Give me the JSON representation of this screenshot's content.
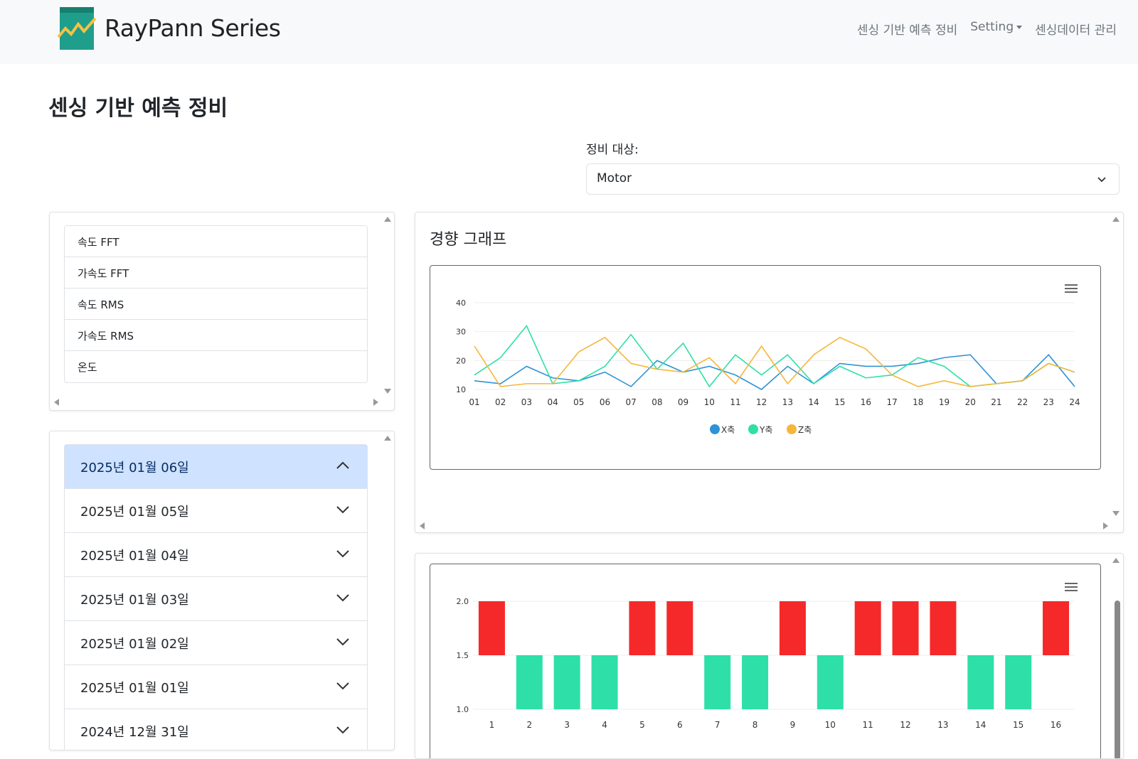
{
  "brand": {
    "name": "RayPann Series"
  },
  "nav": {
    "items": [
      "센싱 기반 예측 정비",
      "Setting",
      "센싱데이터 관리"
    ]
  },
  "page": {
    "title": "센싱 기반 예측 정비"
  },
  "target": {
    "label": "정비 대상:",
    "value": "Motor"
  },
  "metrics": [
    "속도 FFT",
    "가속도 FFT",
    "속도 RMS",
    "가속도 RMS",
    "온도"
  ],
  "dates": [
    {
      "label": "2025년 01월 06일",
      "expanded": true
    },
    {
      "label": "2025년 01월 05일",
      "expanded": false
    },
    {
      "label": "2025년 01월 04일",
      "expanded": false
    },
    {
      "label": "2025년 01월 03일",
      "expanded": false
    },
    {
      "label": "2025년 01월 02일",
      "expanded": false
    },
    {
      "label": "2025년 01월 01일",
      "expanded": false
    },
    {
      "label": "2024년 12월 31일",
      "expanded": false
    }
  ],
  "trend": {
    "title": "경향 그래프"
  },
  "chart_data": [
    {
      "type": "line",
      "x": [
        "01",
        "02",
        "03",
        "04",
        "05",
        "06",
        "07",
        "08",
        "09",
        "10",
        "11",
        "12",
        "13",
        "14",
        "15",
        "16",
        "17",
        "18",
        "19",
        "20",
        "21",
        "22",
        "23",
        "24"
      ],
      "ylim": [
        10,
        40
      ],
      "yticks": [
        10,
        20,
        30,
        40
      ],
      "legend": "bottom",
      "series": [
        {
          "name": "X축",
          "color": "#2e93d6",
          "values": [
            13,
            12,
            18,
            14,
            13,
            16,
            11,
            20,
            16,
            18,
            15,
            10,
            18,
            12,
            19,
            18,
            18,
            19,
            21,
            22,
            12,
            13,
            22,
            11
          ]
        },
        {
          "name": "Y축",
          "color": "#2ee0a8",
          "values": [
            15,
            21,
            32,
            12,
            13,
            18,
            29,
            17,
            26,
            11,
            22,
            15,
            22,
            12,
            18,
            14,
            15,
            21,
            18,
            11,
            12,
            13,
            19,
            16
          ]
        },
        {
          "name": "Z축",
          "color": "#f5b73a",
          "values": [
            25,
            11,
            12,
            12,
            23,
            28,
            19,
            17,
            16,
            21,
            12,
            25,
            12,
            22,
            28,
            24,
            15,
            11,
            13,
            11,
            12,
            13,
            19,
            16
          ]
        }
      ]
    },
    {
      "type": "bar",
      "categories": [
        "1",
        "2",
        "3",
        "4",
        "5",
        "6",
        "7",
        "8",
        "9",
        "10",
        "11",
        "12",
        "13",
        "14",
        "15",
        "16"
      ],
      "values": [
        2.0,
        1.0,
        1.0,
        1.0,
        2.0,
        2.0,
        1.0,
        1.0,
        2.0,
        1.0,
        2.0,
        2.0,
        2.0,
        1.0,
        1.0,
        2.0
      ],
      "baseline": 1.5,
      "ylim": [
        1.0,
        2.0
      ],
      "yticks": [
        1.0,
        1.5,
        2.0
      ],
      "colors": {
        "high": "#f52929",
        "low": "#2ee0a8"
      }
    }
  ]
}
